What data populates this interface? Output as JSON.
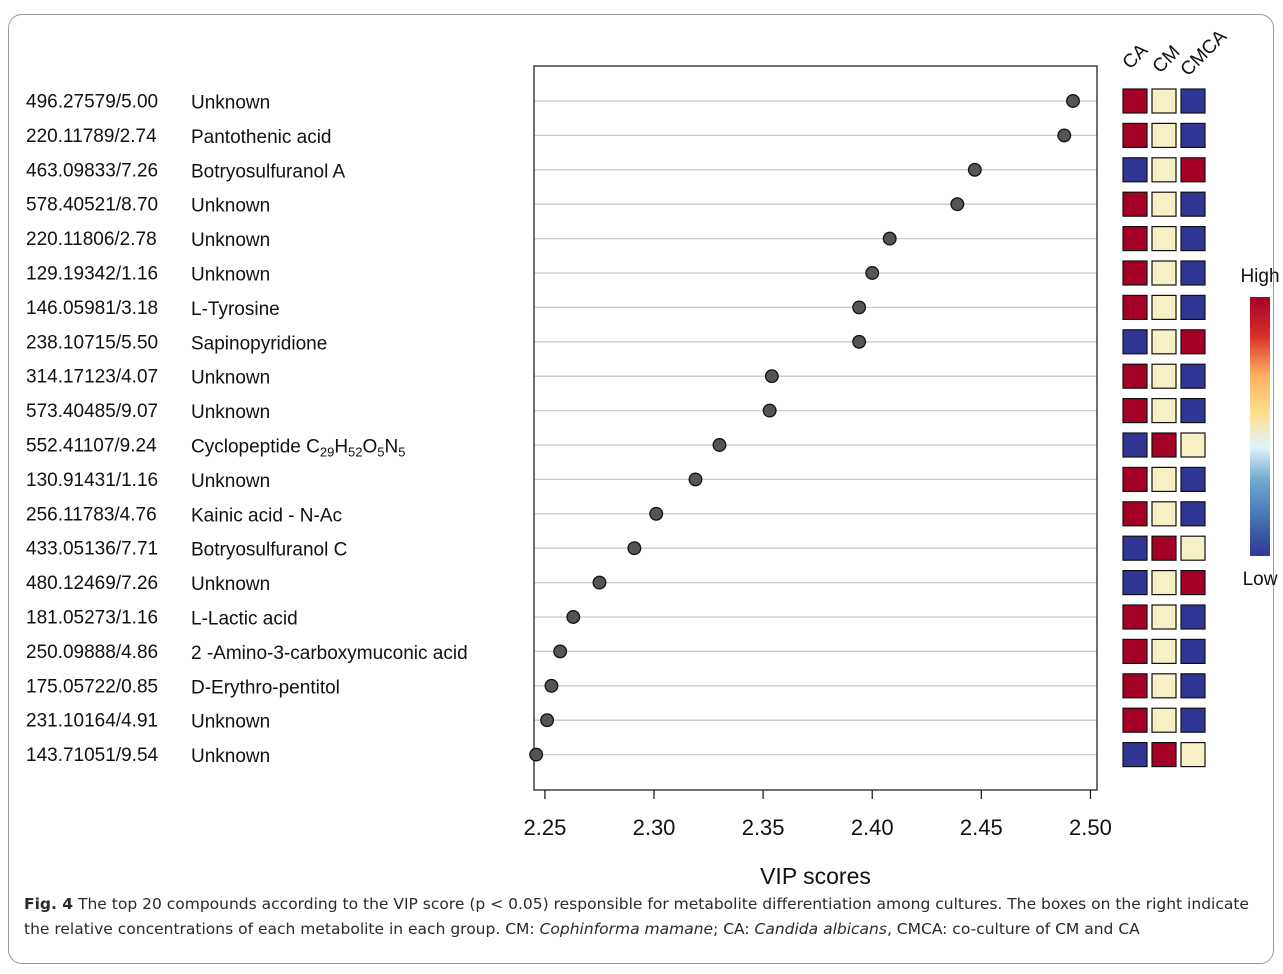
{
  "chart_data": {
    "type": "scatter",
    "xlabel": "VIP scores",
    "xlim": [
      2.245,
      2.503
    ],
    "xticks": [
      "2.25",
      "2.30",
      "2.35",
      "2.40",
      "2.45",
      "2.50"
    ],
    "xtick_values": [
      2.25,
      2.3,
      2.35,
      2.4,
      2.45,
      2.5
    ],
    "grid": "horizontal",
    "point_color": "#555555",
    "groups": [
      "CA",
      "CM",
      "CMCA"
    ],
    "colors": {
      "high": "#a50026",
      "mid": "#f7f0c4",
      "low": "#313695"
    },
    "legend": {
      "high_label": "High",
      "low_label": "Low",
      "position": "right"
    },
    "compounds": [
      {
        "mz_rt": "496.27579/5.00",
        "name": "Unknown",
        "vip": 2.492,
        "levels": [
          "high",
          "mid",
          "low"
        ]
      },
      {
        "mz_rt": "220.11789/2.74",
        "name": "Pantothenic acid",
        "vip": 2.488,
        "levels": [
          "high",
          "mid",
          "low"
        ]
      },
      {
        "mz_rt": "463.09833/7.26",
        "name": "Botryosulfuranol A",
        "vip": 2.447,
        "levels": [
          "low",
          "mid",
          "high"
        ]
      },
      {
        "mz_rt": "578.40521/8.70",
        "name": "Unknown",
        "vip": 2.439,
        "levels": [
          "high",
          "mid",
          "low"
        ]
      },
      {
        "mz_rt": "220.11806/2.78",
        "name": "Unknown",
        "vip": 2.408,
        "levels": [
          "high",
          "mid",
          "low"
        ]
      },
      {
        "mz_rt": "129.19342/1.16",
        "name": "Unknown",
        "vip": 2.4,
        "levels": [
          "high",
          "mid",
          "low"
        ]
      },
      {
        "mz_rt": "146.05981/3.18",
        "name": "L-Tyrosine",
        "vip": 2.394,
        "levels": [
          "high",
          "mid",
          "low"
        ]
      },
      {
        "mz_rt": "238.10715/5.50",
        "name": "Sapinopyridione",
        "vip": 2.394,
        "levels": [
          "low",
          "mid",
          "high"
        ]
      },
      {
        "mz_rt": "314.17123/4.07",
        "name": "Unknown",
        "vip": 2.354,
        "levels": [
          "high",
          "mid",
          "low"
        ]
      },
      {
        "mz_rt": "573.40485/9.07",
        "name": "Unknown",
        "vip": 2.353,
        "levels": [
          "high",
          "mid",
          "low"
        ]
      },
      {
        "mz_rt": "552.41107/9.24",
        "name": "Cyclopeptide C",
        "name_formula": [
          [
            "29",
            "H"
          ],
          [
            "52",
            "O"
          ],
          [
            "5",
            "N"
          ],
          [
            "5",
            ""
          ]
        ],
        "vip": 2.33,
        "levels": [
          "low",
          "high",
          "mid"
        ]
      },
      {
        "mz_rt": "130.91431/1.16",
        "name": "Unknown",
        "vip": 2.319,
        "levels": [
          "high",
          "mid",
          "low"
        ]
      },
      {
        "mz_rt": "256.11783/4.76",
        "name": "Kainic acid - N-Ac",
        "vip": 2.301,
        "levels": [
          "high",
          "mid",
          "low"
        ]
      },
      {
        "mz_rt": "433.05136/7.71",
        "name": "Botryosulfuranol C",
        "vip": 2.291,
        "levels": [
          "low",
          "high",
          "mid"
        ]
      },
      {
        "mz_rt": "480.12469/7.26",
        "name": "Unknown",
        "vip": 2.275,
        "levels": [
          "low",
          "mid",
          "high"
        ]
      },
      {
        "mz_rt": "181.05273/1.16",
        "name": "L-Lactic acid",
        "vip": 2.263,
        "levels": [
          "high",
          "mid",
          "low"
        ]
      },
      {
        "mz_rt": "250.09888/4.86",
        "name": "2 -Amino-3-carboxymuconic acid",
        "vip": 2.257,
        "levels": [
          "high",
          "mid",
          "low"
        ]
      },
      {
        "mz_rt": "175.05722/0.85",
        "name": "D-Erythro-pentitol",
        "vip": 2.253,
        "levels": [
          "high",
          "mid",
          "low"
        ]
      },
      {
        "mz_rt": "231.10164/4.91",
        "name": "Unknown",
        "vip": 2.251,
        "levels": [
          "high",
          "mid",
          "low"
        ]
      },
      {
        "mz_rt": "143.71051/9.54",
        "name": "Unknown",
        "vip": 2.246,
        "levels": [
          "low",
          "high",
          "mid"
        ]
      }
    ]
  },
  "caption": {
    "fig_label": "Fig. 4",
    "text_1": "  The top 20 compounds according to the VIP score (p < 0.05) responsible for metabolite differentiation among cultures. The boxes on the right indicate the relative concentrations of each metabolite in each group. CM: ",
    "species_cm": "Cophinforma mamane",
    "text_2": "; CA: ",
    "species_ca": "Candida albicans",
    "text_3": ", CMCA: co-culture of CM and CA"
  }
}
